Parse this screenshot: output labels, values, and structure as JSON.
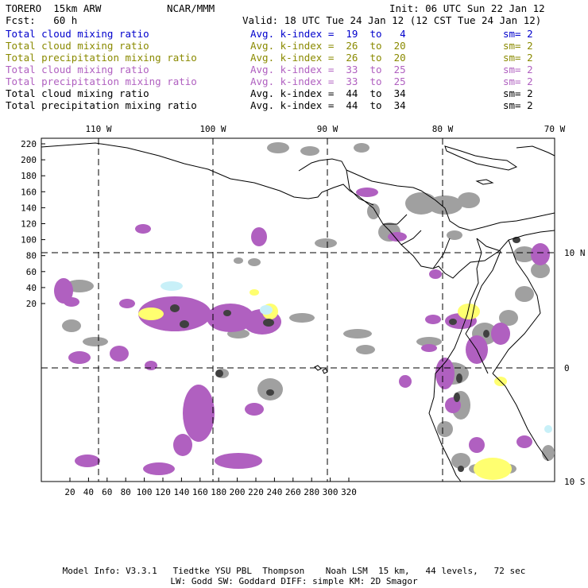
{
  "header": {
    "model": "TORERO  15km ARW",
    "center": "NCAR/MMM",
    "init": "Init: 06 UTC Sun 22 Jan 12",
    "fcst": "Fcst:   60 h",
    "valid": "Valid: 18 UTC Tue 24 Jan 12 (12 CST Tue 24 Jan 12)"
  },
  "legend": [
    {
      "name": "Total cloud mixing ratio",
      "index": "Avg. k-index =  19  to   4",
      "sm": "sm= 2",
      "color": "#0000cc"
    },
    {
      "name": "Total cloud mixing ratio",
      "index": "Avg. k-index =  26  to  20",
      "sm": "sm= 2",
      "color": "#8a8a00"
    },
    {
      "name": "Total precipitation mixing ratio",
      "index": "Avg. k-index =  26  to  20",
      "sm": "sm= 2",
      "color": "#8a8a00"
    },
    {
      "name": "Total cloud mixing ratio",
      "index": "Avg. k-index =  33  to  25",
      "sm": "sm= 2",
      "color": "#b060c0"
    },
    {
      "name": "Total precipitation mixing ratio",
      "index": "Avg. k-index =  33  to  25",
      "sm": "sm= 2",
      "color": "#b060c0"
    },
    {
      "name": "Total cloud mixing ratio",
      "index": "Avg. k-index =  44  to  34",
      "sm": "sm= 2",
      "color": "#000000"
    },
    {
      "name": "Total precipitation mixing ratio",
      "index": "Avg. k-index =  44  to  34",
      "sm": "sm= 2",
      "color": "#000000"
    }
  ],
  "map": {
    "top_lon_labels": [
      "110 W",
      "100 W",
      "90 W",
      "80 W",
      "70 W"
    ],
    "right_lat_labels": [
      "10 N",
      "0",
      "10 S"
    ],
    "y_ticks": [
      "220",
      "200",
      "180",
      "160",
      "140",
      "120",
      "100",
      "80",
      "60",
      "40",
      "20"
    ],
    "x_ticks": [
      "20",
      "40",
      "60",
      "80",
      "100",
      "120",
      "140",
      "160",
      "180",
      "200",
      "220",
      "240",
      "260",
      "280",
      "300",
      "320"
    ],
    "colors": {
      "gray": "#a0a0a0",
      "dark": "#404040",
      "magenta": "#b060c0",
      "yellow": "#ffff70",
      "cyan": "#c8f0f8"
    }
  },
  "footer": {
    "line1": "Model Info: V3.3.1   Tiedtke YSU PBL  Thompson    Noah LSM  15 km,   44 levels,   72 sec",
    "line2": "LW: Godd SW: Goddard DIFF: simple KM: 2D Smagor"
  }
}
